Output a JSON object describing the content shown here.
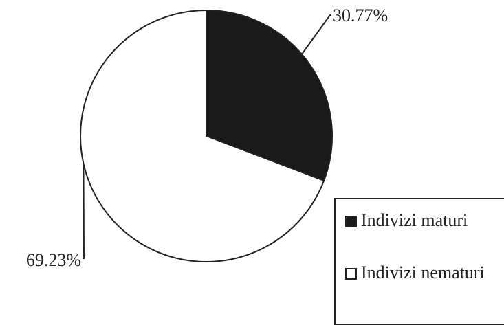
{
  "chart_data": {
    "type": "pie",
    "slices": [
      {
        "label": "Indivizi maturi",
        "value": 30.77,
        "value_label": "30.77%",
        "color": "#1a1a1a"
      },
      {
        "label": "Indivizi nematuri",
        "value": 69.23,
        "value_label": "69.23%",
        "color": "#ffffff"
      }
    ],
    "start": "12 o'clock, clockwise",
    "legend_position": "bottom-right"
  }
}
